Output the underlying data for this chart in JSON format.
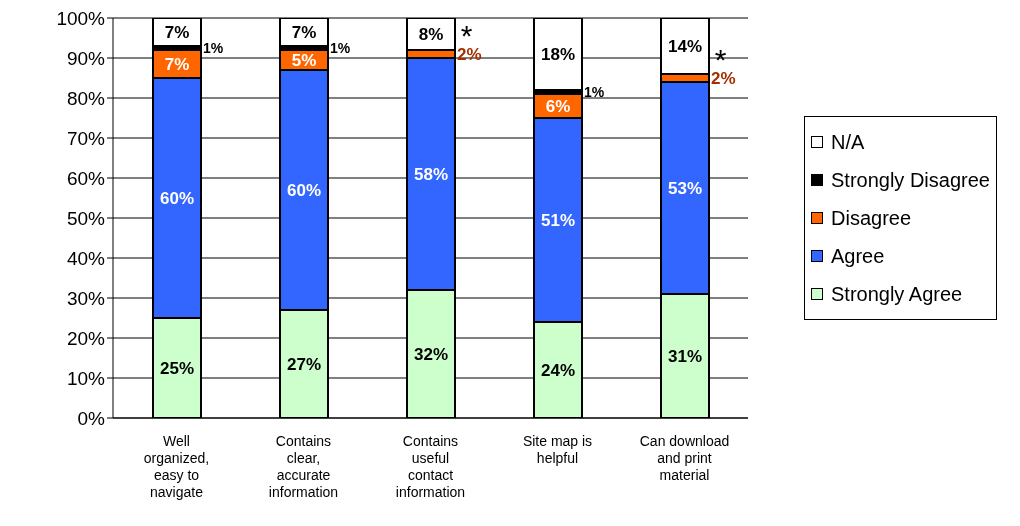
{
  "chart_data": {
    "type": "bar",
    "stacked": true,
    "categories": [
      "Well organized, easy to navigate",
      "Contains clear, accurate information",
      "Contains useful contact information",
      "Site map is helpful",
      "Can download and print material"
    ],
    "series": [
      {
        "name": "Strongly Agree",
        "color": "#ccffcc",
        "values": [
          25,
          27,
          32,
          24,
          31
        ],
        "value_labels": [
          "25%",
          "27%",
          "32%",
          "24%",
          "31%"
        ]
      },
      {
        "name": "Agree",
        "color": "#3366ff",
        "values": [
          60,
          60,
          58,
          51,
          53
        ],
        "value_labels": [
          "60%",
          "60%",
          "58%",
          "51%",
          "53%"
        ]
      },
      {
        "name": "Disagree",
        "color": "#ff6600",
        "values": [
          7,
          5,
          2,
          6,
          2
        ],
        "value_labels": [
          "7%",
          "5%",
          "2%",
          "6%",
          "2%"
        ]
      },
      {
        "name": "Strongly Disagree",
        "color": "#000000",
        "values": [
          1,
          1,
          0,
          1,
          0
        ],
        "value_labels": [
          "1%",
          "1%",
          null,
          "1%",
          null
        ]
      },
      {
        "name": "N/A",
        "color": "#ffffff",
        "values": [
          7,
          7,
          8,
          18,
          14
        ],
        "value_labels": [
          "7%",
          "7%",
          "8%",
          "18%",
          "14%"
        ]
      }
    ],
    "ylim": [
      0,
      100
    ],
    "yticks": [
      {
        "value": 0,
        "label": "0%"
      },
      {
        "value": 10,
        "label": "10%"
      },
      {
        "value": 20,
        "label": "20%"
      },
      {
        "value": 30,
        "label": "30%"
      },
      {
        "value": 40,
        "label": "40%"
      },
      {
        "value": 50,
        "label": "50%"
      },
      {
        "value": 60,
        "label": "60%"
      },
      {
        "value": 70,
        "label": "70%"
      },
      {
        "value": 80,
        "label": "80%"
      },
      {
        "value": 90,
        "label": "90%"
      },
      {
        "value": 100,
        "label": "100%"
      }
    ],
    "grid": "y",
    "legend": "right",
    "annotations": [
      {
        "text": "*",
        "x": "Contains useful contact information",
        "y": 92
      },
      {
        "text": "*",
        "x": "Can download and print material",
        "y": 86
      }
    ]
  }
}
